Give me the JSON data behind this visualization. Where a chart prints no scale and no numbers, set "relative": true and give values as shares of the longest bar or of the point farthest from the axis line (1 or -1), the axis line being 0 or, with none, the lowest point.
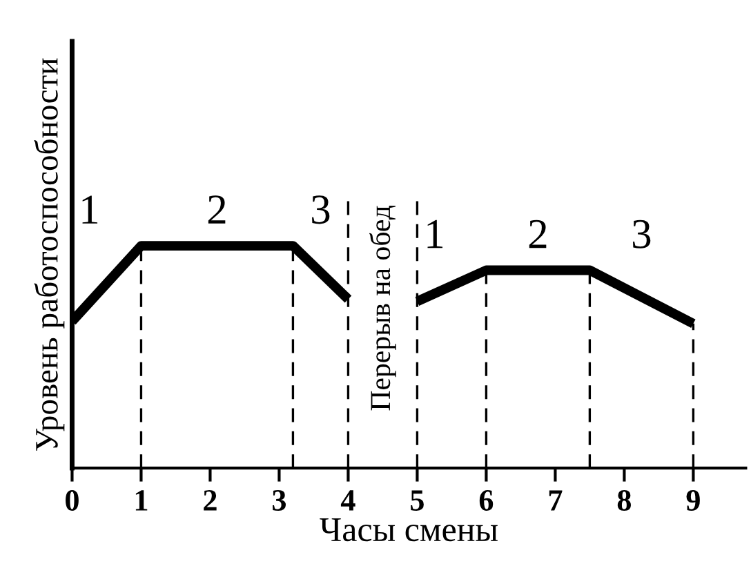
{
  "chart_data": {
    "type": "line",
    "relative": true,
    "xlabel": "Часы смены",
    "ylabel": "Уровень работоспособности",
    "xlim": [
      0,
      9.76
    ],
    "xticks": [
      0,
      1,
      2,
      3,
      4,
      5,
      6,
      7,
      8,
      9
    ],
    "tick_labels": "x",
    "legend": false,
    "marker": "none",
    "line_style": "solid",
    "series": [
      {
        "color": "#000000",
        "x": [
          0,
          1,
          3.2,
          4
        ],
        "values": [
          0.66,
          1,
          1,
          0.76
        ]
      },
      {
        "color": "#000000",
        "x": [
          5,
          6,
          7.5,
          9
        ],
        "values": [
          0.75,
          0.89,
          0.89,
          0.65
        ]
      }
    ],
    "ref_lines": [
      {
        "axis": "x",
        "value": 1,
        "color": "#000000",
        "line_style": "dashed"
      },
      {
        "axis": "x",
        "value": 3.2,
        "color": "#000000",
        "line_style": "dashed"
      },
      {
        "axis": "x",
        "value": 4,
        "color": "#000000",
        "line_style": "dashed",
        "label": "Перерыв на обед"
      },
      {
        "axis": "x",
        "value": 5,
        "color": "#000000",
        "line_style": "dashed"
      },
      {
        "axis": "x",
        "value": 6,
        "color": "#000000",
        "line_style": "dashed"
      },
      {
        "axis": "x",
        "value": 7.5,
        "color": "#000000",
        "line_style": "dashed"
      },
      {
        "axis": "x",
        "value": 9,
        "color": "#000000",
        "line_style": "dashed"
      }
    ],
    "annotations": [
      "1",
      "2",
      "3",
      "1",
      "2",
      "3"
    ]
  }
}
